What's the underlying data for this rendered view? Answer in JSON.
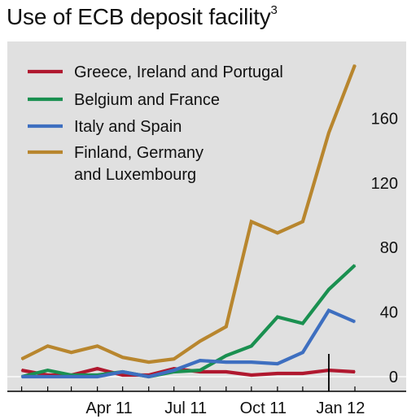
{
  "chart_data": {
    "type": "line",
    "title": "Use of ECB deposit facility",
    "title_note": "3",
    "xlabel": "",
    "ylabel": "",
    "ylim": [
      0,
      200
    ],
    "y_ticks": [
      0,
      40,
      80,
      120,
      160
    ],
    "x_ticks": [
      {
        "label": "Apr 11",
        "x": "2011-04"
      },
      {
        "label": "Jul 11",
        "x": "2011-07"
      },
      {
        "label": "Oct 11",
        "x": "2011-10"
      },
      {
        "label": "Jan 12",
        "x": "2012-01"
      }
    ],
    "grid": false,
    "legend_position": "top-left",
    "x": [
      "2010-12-15",
      "2011-01-01",
      "2011-01-15",
      "2011-02-01",
      "2011-02-15",
      "2011-03-01",
      "2011-03-15",
      "2011-04-01",
      "2011-04-15",
      "2011-05-01",
      "2011-05-15",
      "2011-06-01",
      "2011-06-15",
      "2011-07-01",
      "2011-07-15",
      "2011-08-01",
      "2011-08-15",
      "2011-09-01",
      "2011-09-15",
      "2011-10-01",
      "2011-10-15",
      "2011-11-01",
      "2011-11-15",
      "2011-12-01",
      "2011-12-15",
      "2012-01-01",
      "2012-01-15",
      "2012-02-01"
    ],
    "series": [
      {
        "name": "Greece, Ireland and Portugal",
        "color": "#b0182f",
        "values": [
          null,
          4,
          null,
          1,
          null,
          1,
          null,
          5,
          null,
          1,
          null,
          1,
          null,
          5,
          null,
          3,
          null,
          3,
          null,
          1,
          null,
          2,
          null,
          2,
          null,
          4,
          null,
          3
        ]
      },
      {
        "name": "Belgium and France",
        "color": "#1a9050",
        "values": [
          null,
          0,
          null,
          4,
          null,
          1,
          null,
          1,
          null,
          3,
          null,
          0,
          null,
          3,
          null,
          4,
          null,
          13,
          null,
          19,
          null,
          37,
          null,
          33,
          null,
          54,
          null,
          69
        ]
      },
      {
        "name": "Italy and Spain",
        "color": "#3e6fc0",
        "values": [
          null,
          0,
          null,
          0,
          null,
          0,
          null,
          0,
          null,
          3,
          null,
          0,
          null,
          4,
          null,
          10,
          null,
          9,
          null,
          9,
          null,
          8,
          null,
          15,
          null,
          41,
          null,
          34
        ]
      },
      {
        "name": "Finland, Germany and Luxembourg",
        "color": "#b8862e",
        "values": [
          null,
          11,
          null,
          19,
          null,
          15,
          null,
          19,
          null,
          12,
          null,
          9,
          null,
          11,
          null,
          22,
          null,
          31,
          null,
          96,
          null,
          89,
          null,
          96,
          null,
          151,
          null,
          193
        ]
      }
    ]
  },
  "legend": {
    "items": [
      {
        "line1": "Greece, Ireland and Portugal",
        "line2": ""
      },
      {
        "line1": "Belgium and France",
        "line2": ""
      },
      {
        "line1": "Italy and Spain",
        "line2": ""
      },
      {
        "line1": "Finland, Germany",
        "line2": "and Luxembourg"
      }
    ]
  },
  "colors": {
    "plot_background": "#e0e0e0",
    "axis": "#000000"
  }
}
